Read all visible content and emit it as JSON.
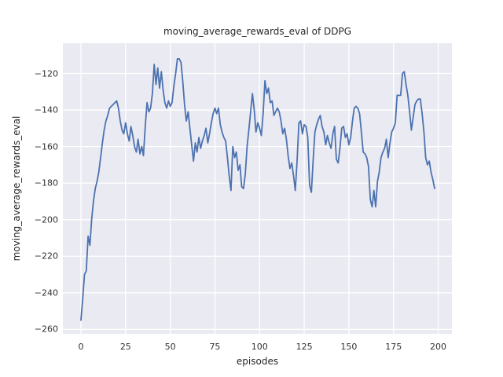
{
  "title": "moving_average_rewards_eval of DDPG",
  "colors": {
    "figure_background": "#ffffff",
    "plot_background": "#eaeaf2",
    "gridline": "#ffffff",
    "line": "#4c72b0",
    "text": "#262626"
  },
  "chart_data": {
    "type": "line",
    "title": "moving_average_rewards_eval of DDPG",
    "xlabel": "episodes",
    "ylabel": "moving_average_rewards_eval",
    "x_ticks": [
      0,
      25,
      50,
      75,
      100,
      125,
      150,
      175,
      200
    ],
    "y_ticks": [
      -120,
      -140,
      -160,
      -180,
      -200,
      -220,
      -240,
      -260
    ],
    "xlim": [
      -9.9,
      207.9
    ],
    "ylim": [
      -262.5,
      -104.5
    ],
    "grid": true,
    "legend_position": "none",
    "line_color": "#4c72b0",
    "series": [
      {
        "name": "moving_average_rewards_eval",
        "x_start": 0,
        "x_step": 1,
        "values": [
          -255,
          -243,
          -230,
          -228,
          -209,
          -214,
          -200,
          -190,
          -183,
          -179,
          -174,
          -166,
          -158,
          -151,
          -146,
          -143,
          -139,
          -138,
          -137,
          -136,
          -135,
          -139,
          -146,
          -151,
          -153,
          -147,
          -153,
          -157,
          -149,
          -154,
          -160,
          -163,
          -156,
          -164,
          -160,
          -165,
          -149,
          -136,
          -141,
          -139,
          -131,
          -115,
          -126,
          -117,
          -128,
          -119,
          -129,
          -136,
          -139,
          -135,
          -138,
          -136,
          -127,
          -120,
          -112,
          -112,
          -114,
          -124,
          -137,
          -146,
          -141,
          -150,
          -159,
          -168,
          -158,
          -163,
          -155,
          -161,
          -157,
          -154,
          -150,
          -158,
          -153,
          -147,
          -142,
          -139,
          -142,
          -139,
          -148,
          -152,
          -155,
          -157,
          -166,
          -176,
          -184,
          -160,
          -166,
          -163,
          -173,
          -170,
          -182,
          -183,
          -175,
          -160,
          -151,
          -141,
          -131,
          -140,
          -152,
          -147,
          -150,
          -154,
          -142,
          -124,
          -131,
          -128,
          -136,
          -135,
          -143,
          -141,
          -139,
          -141,
          -146,
          -153,
          -150,
          -156,
          -165,
          -172,
          -169,
          -176,
          -184,
          -168,
          -147,
          -146,
          -153,
          -148,
          -149,
          -155,
          -181,
          -185,
          -167,
          -152,
          -148,
          -145,
          -143,
          -149,
          -152,
          -159,
          -154,
          -158,
          -161,
          -153,
          -149,
          -167,
          -169,
          -161,
          -150,
          -149,
          -155,
          -153,
          -159,
          -155,
          -146,
          -139,
          -138,
          -139,
          -142,
          -152,
          -163,
          -164,
          -166,
          -171,
          -189,
          -193,
          -184,
          -193,
          -179,
          -174,
          -166,
          -163,
          -161,
          -156,
          -166,
          -158,
          -152,
          -150,
          -147,
          -132,
          -132,
          -132,
          -120,
          -119,
          -126,
          -132,
          -141,
          -151,
          -144,
          -137,
          -135,
          -134,
          -134,
          -142,
          -152,
          -166,
          -170,
          -168,
          -174,
          -178,
          -183
        ]
      }
    ]
  }
}
